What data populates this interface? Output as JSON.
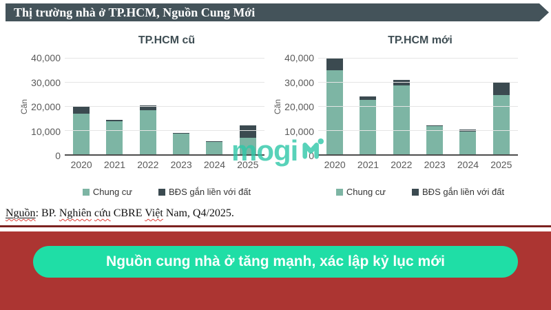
{
  "header": {
    "title": "Thị trường nhà ở TP.HCM, Nguồn Cung Mới"
  },
  "watermark": {
    "text": "mogi"
  },
  "charts_shared": {
    "y_axis_label": "Căn",
    "y_ticks": [
      "40,000",
      "30,000",
      "20,000",
      "10,000",
      "0"
    ],
    "legend": [
      {
        "label": "Chung cư",
        "color": "#7db5a4"
      },
      {
        "label": "BĐS gắn liền với đất",
        "color": "#3b4a50"
      }
    ]
  },
  "chart_data": [
    {
      "type": "bar",
      "stacked": true,
      "title": "TP.HCM cũ",
      "ylabel": "Căn",
      "ylim": [
        0,
        40000
      ],
      "grid": true,
      "categories": [
        "2020",
        "2021",
        "2022",
        "2023",
        "2024",
        "2025"
      ],
      "series": [
        {
          "name": "Chung cư",
          "color": "#7db5a4",
          "values": [
            17000,
            13800,
            18200,
            8700,
            5200,
            7000
          ]
        },
        {
          "name": "BĐS gắn liền với đất",
          "color": "#3b4a50",
          "values": [
            2700,
            500,
            2100,
            300,
            300,
            5000
          ]
        }
      ]
    },
    {
      "type": "bar",
      "stacked": true,
      "title": "TP.HCM mới",
      "ylabel": "Căn",
      "ylim": [
        0,
        40000
      ],
      "grid": true,
      "categories": [
        "2020",
        "2021",
        "2022",
        "2023",
        "2024",
        "2025"
      ],
      "series": [
        {
          "name": "Chung cư",
          "color": "#7db5a4",
          "values": [
            35000,
            22500,
            28500,
            11700,
            9500,
            24500
          ]
        },
        {
          "name": "BĐS gắn liền với đất",
          "color": "#3b4a50",
          "values": [
            5000,
            1500,
            2500,
            300,
            800,
            5500
          ]
        }
      ]
    }
  ],
  "source": {
    "segments": [
      {
        "text": "Nguồn",
        "style": "solid-wavy"
      },
      {
        "text": ": BP. ",
        "style": "plain"
      },
      {
        "text": "Nghiên",
        "style": "wavy"
      },
      {
        "text": " ",
        "style": "plain"
      },
      {
        "text": "cứu",
        "style": "wavy"
      },
      {
        "text": " CBRE ",
        "style": "plain"
      },
      {
        "text": "Việt",
        "style": "wavy"
      },
      {
        "text": " Nam, Q4/2025.",
        "style": "plain"
      }
    ]
  },
  "footer": {
    "headline": "Nguồn cung nhà ở tăng mạnh, xác lập kỷ lục mới"
  },
  "colors": {
    "title_banner_bg": "#44535a",
    "bar_teal": "#7db5a4",
    "bar_dark": "#3b4a50",
    "red_bg": "#ac3532",
    "red_line": "#7c211f",
    "pill_teal": "#1fdea6",
    "watermark_teal": "#2fc7a8"
  }
}
